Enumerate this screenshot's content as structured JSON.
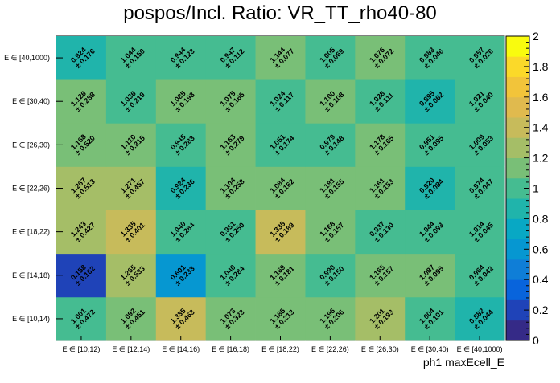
{
  "chart_data": {
    "type": "heatmap",
    "title": "pospos/Incl. Ratio: VR_TT_rho40-80",
    "xlabel": "ph1 maxEcell_E",
    "ylabel": "",
    "x_categories": [
      "E ∈ [10,12)",
      "E ∈ [12,14)",
      "E ∈ [14,16)",
      "E ∈ [16,18)",
      "E ∈ [18,22)",
      "E ∈ [22,26)",
      "E ∈ [26,30)",
      "E ∈ [30,40)",
      "E ∈ [40,1000)"
    ],
    "y_categories": [
      "E ∈ [10,14)",
      "E ∈ [14,18)",
      "E ∈ [18,22)",
      "E ∈ [22,26)",
      "E ∈ [26,30)",
      "E ∈ [30,40)",
      "E ∈ [40,1000)"
    ],
    "values": [
      [
        1.001,
        1.092,
        1.335,
        1.073,
        1.185,
        1.196,
        1.201,
        1.004,
        0.882
      ],
      [
        0.158,
        1.265,
        0.601,
        1.04,
        1.169,
        0.99,
        1.165,
        1.087,
        0.964
      ],
      [
        1.243,
        1.335,
        1.04,
        0.951,
        1.335,
        1.168,
        0.937,
        1.044,
        1.014
      ],
      [
        1.267,
        1.271,
        0.924,
        1.104,
        1.084,
        1.181,
        1.161,
        0.92,
        0.974
      ],
      [
        1.168,
        1.11,
        0.945,
        1.163,
        1.051,
        0.979,
        1.178,
        0.951,
        1.009
      ],
      [
        1.126,
        1.036,
        1.085,
        1.075,
        1.024,
        1.1,
        1.028,
        0.895,
        1.021
      ],
      [
        0.924,
        1.044,
        0.944,
        0.947,
        1.144,
        1.005,
        1.076,
        0.983,
        0.957
      ]
    ],
    "errors": [
      [
        0.472,
        0.451,
        0.463,
        0.323,
        0.213,
        0.206,
        0.193,
        0.101,
        0.044
      ],
      [
        0.162,
        0.533,
        0.233,
        0.284,
        0.181,
        0.15,
        0.157,
        0.095,
        0.042
      ],
      [
        0.427,
        0.401,
        0.284,
        0.25,
        0.189,
        0.157,
        0.13,
        0.093,
        0.045
      ],
      [
        0.513,
        0.457,
        0.236,
        0.258,
        0.162,
        0.155,
        0.153,
        0.084,
        0.047
      ],
      [
        0.52,
        0.315,
        0.283,
        0.279,
        0.174,
        0.148,
        0.165,
        0.095,
        0.053
      ],
      [
        0.288,
        0.219,
        0.193,
        0.165,
        0.117,
        0.108,
        0.111,
        0.062,
        0.04
      ],
      [
        0.176,
        0.15,
        0.123,
        0.112,
        0.077,
        0.069,
        0.072,
        0.046,
        0.026
      ]
    ],
    "zlim": [
      0,
      2
    ],
    "z_ticks": [
      "0",
      "0.2",
      "0.4",
      "0.6",
      "0.8",
      "1",
      "1.2",
      "1.4",
      "1.6",
      "1.8",
      "2"
    ],
    "colormap": [
      "#352a87",
      "#1f43b8",
      "#0864dc",
      "#0f7ed7",
      "#0697d1",
      "#08a8c4",
      "#20b4ab",
      "#45bc91",
      "#79bf77",
      "#a5be67",
      "#c7bb5b",
      "#e0ba4e",
      "#f2c43a",
      "#fbd929",
      "#f9fb0e"
    ]
  }
}
